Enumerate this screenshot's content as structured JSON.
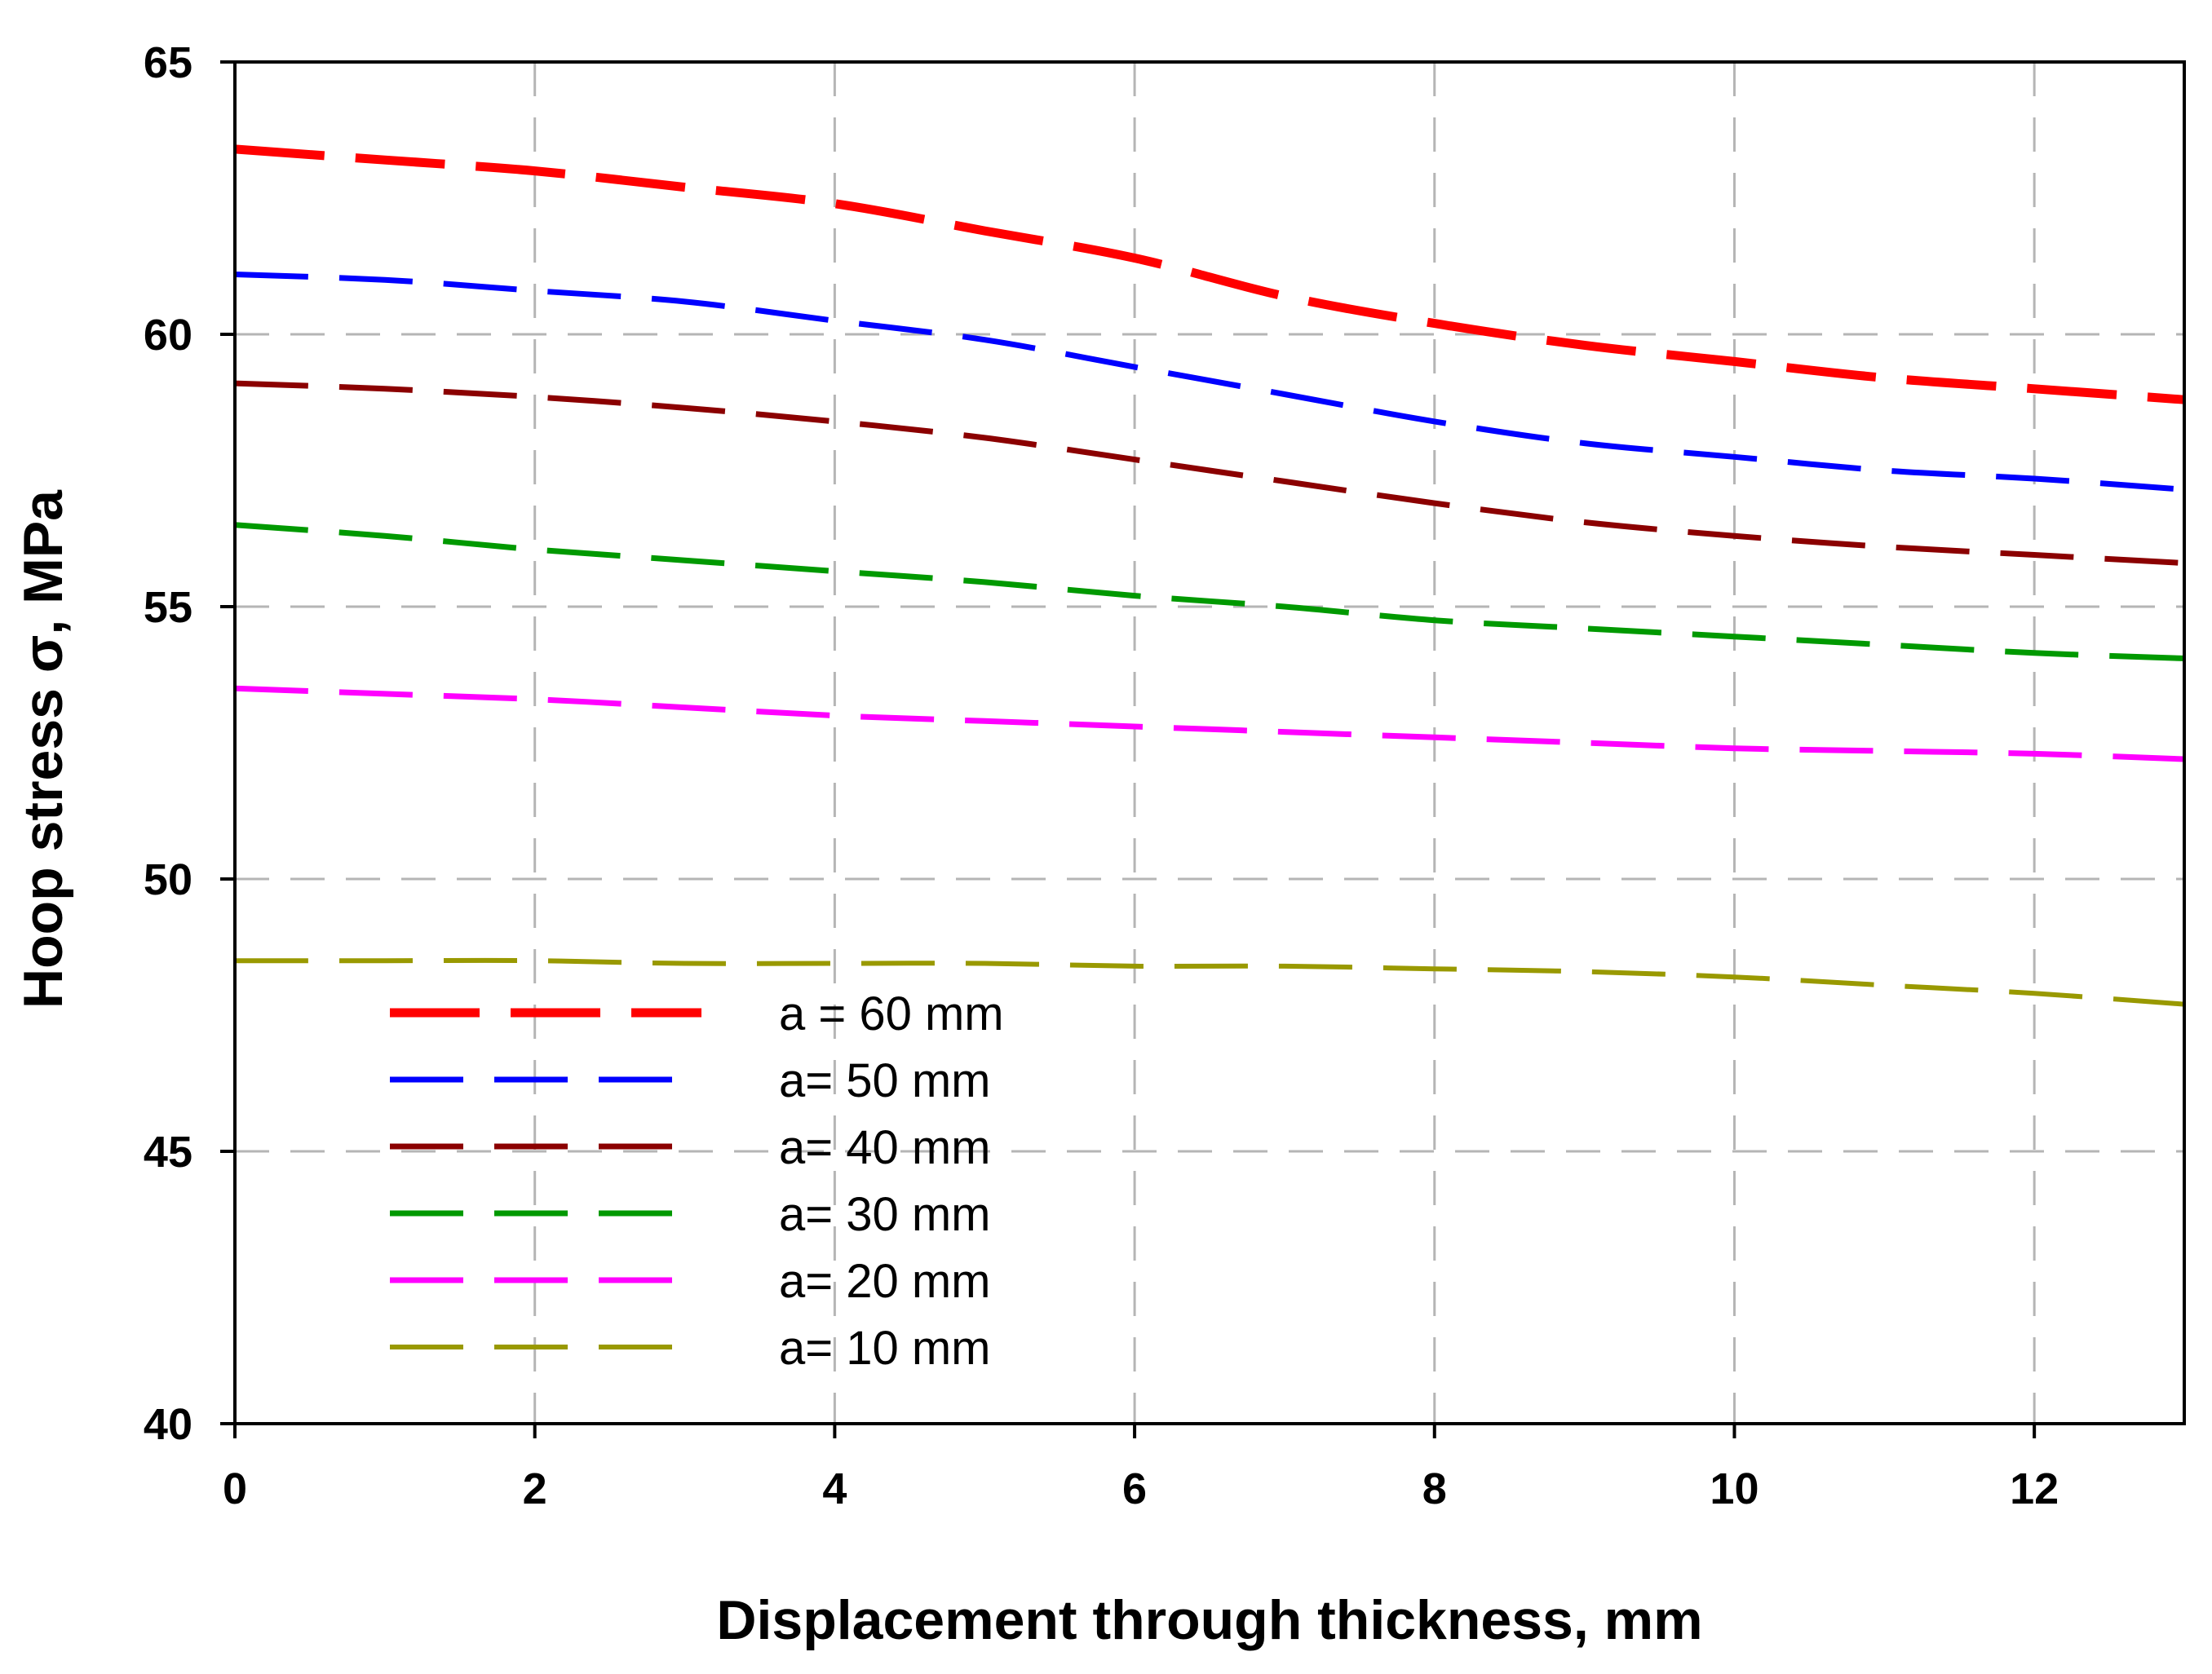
{
  "chart_data": {
    "type": "line",
    "title": "",
    "xlabel": "Displacement through thickness, mm",
    "ylabel": "Hoop stress σ, MPa",
    "xlim": [
      0,
      13
    ],
    "ylim": [
      40,
      65
    ],
    "xticks": [
      0,
      2,
      4,
      6,
      8,
      10,
      12
    ],
    "yticks": [
      40,
      45,
      50,
      55,
      60,
      65
    ],
    "xtick_labels": [
      "0",
      "2",
      "4",
      "6",
      "8",
      "10",
      "12"
    ],
    "ytick_labels": [
      "40",
      "45",
      "50",
      "55",
      "60",
      "65"
    ],
    "grid": true,
    "legend_position": "lower-left",
    "x": [
      0,
      1,
      2,
      3,
      4,
      5,
      6,
      7,
      8,
      9,
      10,
      11,
      12,
      13
    ],
    "series": [
      {
        "name": "a = 60 mm",
        "color": "#ff0000",
        "values": [
          63.4,
          63.2,
          63.0,
          62.7,
          62.4,
          61.9,
          61.4,
          60.7,
          60.2,
          59.8,
          59.5,
          59.2,
          59.0,
          58.8
        ]
      },
      {
        "name": "a= 50 mm",
        "color": "#0000ff",
        "values": [
          61.1,
          61.0,
          60.8,
          60.6,
          60.25,
          59.9,
          59.4,
          58.9,
          58.4,
          58.0,
          57.75,
          57.5,
          57.35,
          57.15
        ]
      },
      {
        "name": "a= 40 mm",
        "color": "#8b0000",
        "values": [
          59.1,
          59.0,
          58.85,
          58.65,
          58.4,
          58.1,
          57.7,
          57.3,
          56.9,
          56.55,
          56.3,
          56.1,
          55.95,
          55.8
        ]
      },
      {
        "name": "a= 30 mm",
        "color": "#009900",
        "values": [
          56.5,
          56.3,
          56.05,
          55.85,
          55.65,
          55.45,
          55.2,
          55.0,
          54.75,
          54.6,
          54.45,
          54.3,
          54.15,
          54.05
        ]
      },
      {
        "name": "a= 20 mm",
        "color": "#ff00ff",
        "values": [
          53.5,
          53.4,
          53.3,
          53.15,
          53.0,
          52.9,
          52.8,
          52.7,
          52.6,
          52.5,
          52.4,
          52.35,
          52.3,
          52.2
        ]
      },
      {
        "name": "a= 10 mm",
        "color": "#999900",
        "values": [
          48.5,
          48.5,
          48.5,
          48.45,
          48.45,
          48.45,
          48.4,
          48.4,
          48.35,
          48.3,
          48.2,
          48.05,
          47.9,
          47.7
        ]
      }
    ]
  }
}
